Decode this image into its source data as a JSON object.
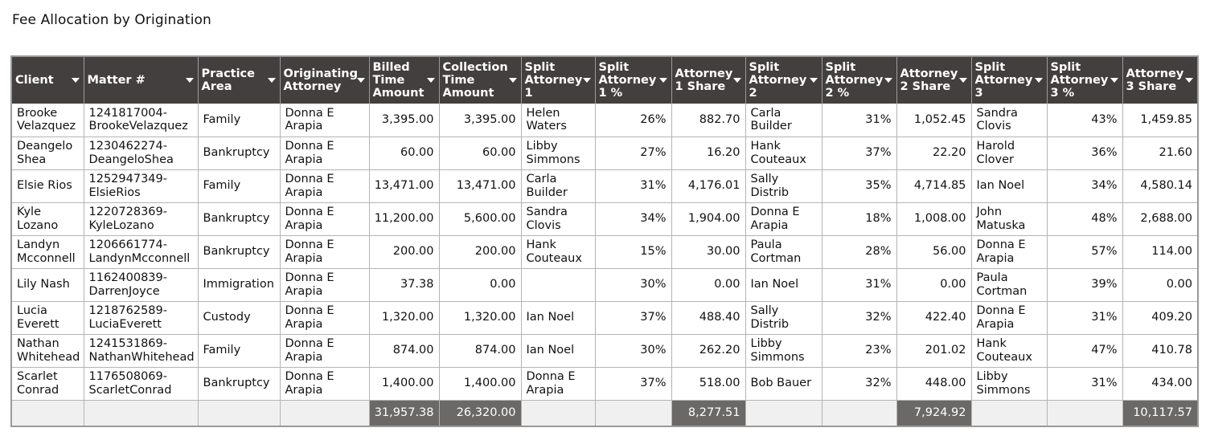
{
  "report": {
    "title": "Fee Allocation by Origination"
  },
  "columns": [
    "Client",
    "Matter #",
    "Practice Area",
    "Originating Attorney",
    "Billed Time Amount",
    "Collection Time Amount",
    "Split Attorney 1",
    "Split Attorney 1 %",
    "Attorney 1 Share",
    "Split Attorney 2",
    "Split Attorney 2 %",
    "Attorney 2 Share",
    "Split Attorney 3",
    "Split Attorney 3 %",
    "Attorney 3 Share"
  ],
  "rows": [
    [
      "Brooke Velazquez",
      "1241817004-BrookeVelazquez",
      "Family",
      "Donna E Arapia",
      "3,395.00",
      "3,395.00",
      "Helen Waters",
      "26%",
      "882.70",
      "Carla Builder",
      "31%",
      "1,052.45",
      "Sandra Clovis",
      "43%",
      "1,459.85"
    ],
    [
      "Deangelo Shea",
      "1230462274-DeangeloShea",
      "Bankruptcy",
      "Donna E Arapia",
      "60.00",
      "60.00",
      "Libby Simmons",
      "27%",
      "16.20",
      "Hank Couteaux",
      "37%",
      "22.20",
      "Harold Clover",
      "36%",
      "21.60"
    ],
    [
      "Elsie Rios",
      "1252947349-ElsieRios",
      "Family",
      "Donna E Arapia",
      "13,471.00",
      "13,471.00",
      "Carla Builder",
      "31%",
      "4,176.01",
      "Sally Distrib",
      "35%",
      "4,714.85",
      "Ian Noel",
      "34%",
      "4,580.14"
    ],
    [
      "Kyle Lozano",
      "1220728369-KyleLozano",
      "Bankruptcy",
      "Donna E Arapia",
      "11,200.00",
      "5,600.00",
      "Sandra Clovis",
      "34%",
      "1,904.00",
      "Donna E Arapia",
      "18%",
      "1,008.00",
      "John Matuska",
      "48%",
      "2,688.00"
    ],
    [
      "Landyn Mcconnell",
      "1206661774-LandynMcconnell",
      "Bankruptcy",
      "Donna E Arapia",
      "200.00",
      "200.00",
      "Hank Couteaux",
      "15%",
      "30.00",
      "Paula Cortman",
      "28%",
      "56.00",
      "Donna E Arapia",
      "57%",
      "114.00"
    ],
    [
      "Lily Nash",
      "1162400839-DarrenJoyce",
      "Immigration",
      "Donna E Arapia",
      "37.38",
      "0.00",
      "",
      "30%",
      "0.00",
      "Ian Noel",
      "31%",
      "0.00",
      "Paula Cortman",
      "39%",
      "0.00"
    ],
    [
      "Lucia Everett",
      "1218762589-LuciaEverett",
      "Custody",
      "Donna E Arapia",
      "1,320.00",
      "1,320.00",
      "Ian Noel",
      "37%",
      "488.40",
      "Sally Distrib",
      "32%",
      "422.40",
      "Donna E Arapia",
      "31%",
      "409.20"
    ],
    [
      "Nathan Whitehead",
      "1241531869-NathanWhitehead",
      "Family",
      "Donna E Arapia",
      "874.00",
      "874.00",
      "Ian Noel",
      "30%",
      "262.20",
      "Libby Simmons",
      "23%",
      "201.02",
      "Hank Couteaux",
      "47%",
      "410.78"
    ],
    [
      "Scarlet Conrad",
      "1176508069-ScarletConrad",
      "Bankruptcy",
      "Donna E Arapia",
      "1,400.00",
      "1,400.00",
      "Donna E Arapia",
      "37%",
      "518.00",
      "Bob Bauer",
      "32%",
      "448.00",
      "Libby Simmons",
      "31%",
      "434.00"
    ]
  ],
  "totals": [
    "",
    "",
    "",
    "",
    "31,957.38",
    "26,320.00",
    "",
    "",
    "8,277.51",
    "",
    "",
    "7,924.92",
    "",
    "",
    "10,117.57"
  ]
}
